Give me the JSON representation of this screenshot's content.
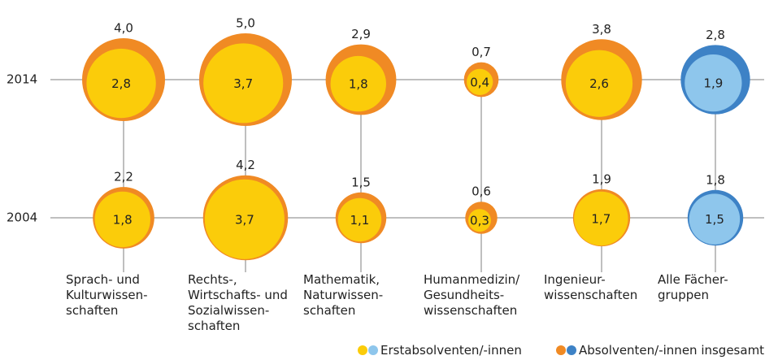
{
  "chart_data": {
    "type": "bubble",
    "rows": [
      "2014",
      "2004"
    ],
    "categories": [
      "Sprach- und\nKulturwissen-\nschaften",
      "Rechts-,\nWirtschafts- und\nSozialwissen-\nschaften",
      "Mathematik,\nNaturwissen-\nschaften",
      "Humanmedizin/\nGesundheits-\nwissenschaften",
      "Ingenieur-\nwissenschaften",
      "Alle Fächer-\ngruppen"
    ],
    "series": [
      {
        "name": "Absolventen/-innen insgesamt",
        "colors": [
          "#f08a24",
          "#f08a24",
          "#f08a24",
          "#f08a24",
          "#f08a24",
          "#3d82c6"
        ],
        "values": [
          [
            4.0,
            5.0,
            2.9,
            0.7,
            3.8,
            2.8
          ],
          [
            2.2,
            4.2,
            1.5,
            0.6,
            1.9,
            1.8
          ]
        ],
        "value_labels": [
          [
            "4,0",
            "5,0",
            "2,9",
            "0,7",
            "3,8",
            "2,8"
          ],
          [
            "2,2",
            "4,2",
            "1,5",
            "0,6",
            "1,9",
            "1,8"
          ]
        ]
      },
      {
        "name": "Erstabsolventen/-innen",
        "colors": [
          "#fbcc0a",
          "#fbcc0a",
          "#fbcc0a",
          "#fbcc0a",
          "#fbcc0a",
          "#8ec6ec"
        ],
        "values": [
          [
            2.8,
            3.7,
            1.8,
            0.4,
            2.6,
            1.9
          ],
          [
            1.8,
            3.7,
            1.1,
            0.3,
            1.7,
            1.5
          ]
        ],
        "value_labels": [
          [
            "2,8",
            "3,7",
            "1,8",
            "0,4",
            "2,6",
            "1,9"
          ],
          [
            "1,8",
            "3,7",
            "1,1",
            "0,3",
            "1,7",
            "1,5"
          ]
        ]
      }
    ]
  }
}
